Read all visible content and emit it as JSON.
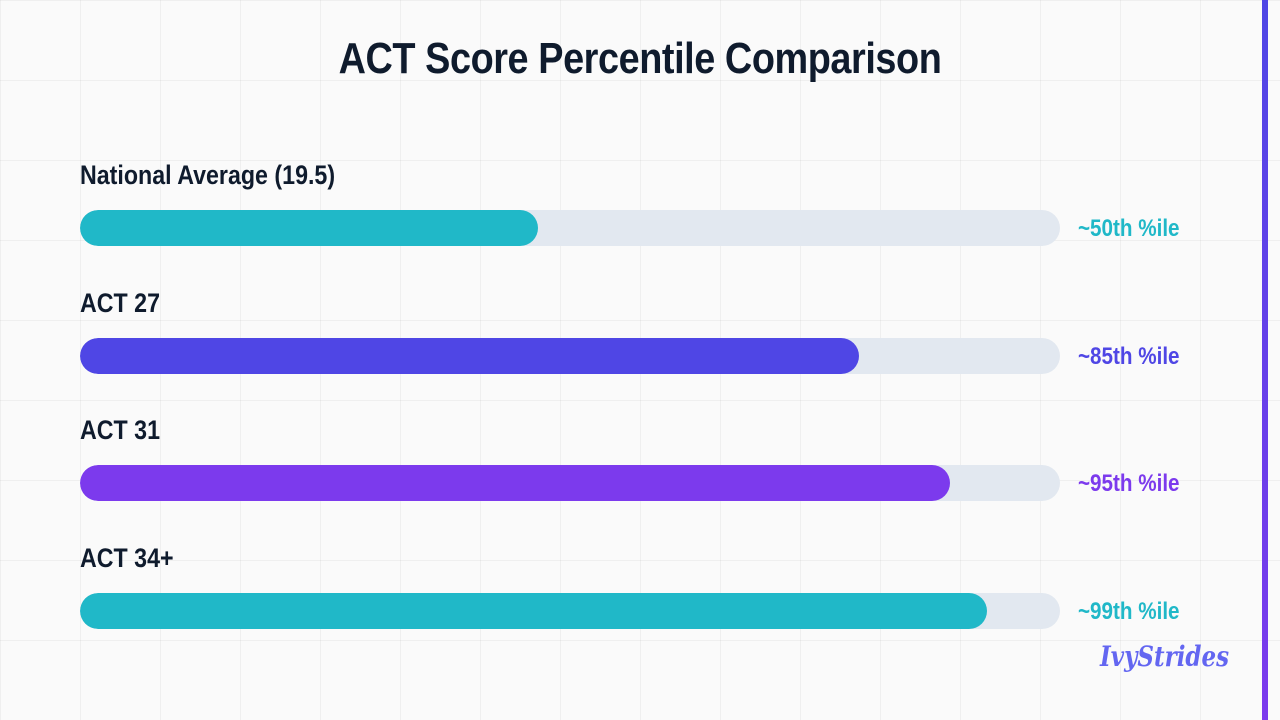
{
  "chart_data": {
    "type": "bar",
    "orientation": "horizontal",
    "title": "ACT Score Percentile Comparison",
    "categories": [
      "National Average (19.5)",
      "ACT 27",
      "ACT 31",
      "ACT 34+"
    ],
    "values": [
      50,
      85,
      95,
      99
    ],
    "value_labels": [
      "~50th %ile",
      "~85th %ile",
      "~95th %ile",
      "~99th %ile"
    ],
    "colors": [
      "#20b8c8",
      "#4f46e5",
      "#7c3aed",
      "#20b8c8"
    ],
    "xlim": [
      0,
      107
    ],
    "track_color": "#e2e8f0",
    "grid": true,
    "legend": "none"
  },
  "brand": {
    "name": "IvyStrides",
    "color": "#6366f1"
  }
}
